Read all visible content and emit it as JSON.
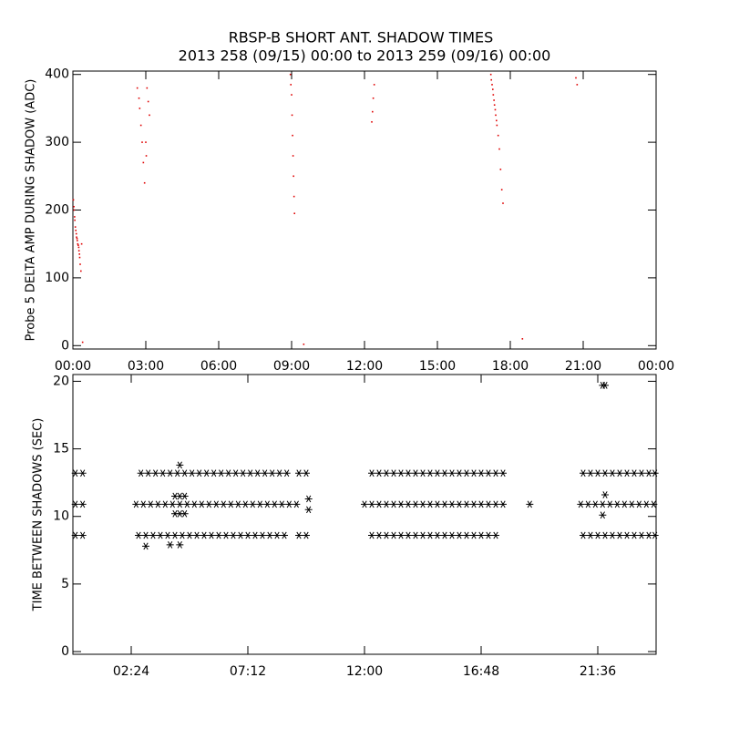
{
  "chart_data": [
    {
      "type": "scatter",
      "title": "RBSP-B SHORT ANT. SHADOW TIMES",
      "subtitle": "2013 258 (09/15) 00:00 to 2013 259 (09/16) 00:00",
      "y_label": "Probe 5 DELTA AMP DURING SHADOW (ADC)",
      "xlim": [
        0,
        24
      ],
      "ylim": [
        -5,
        405
      ],
      "xticks": [
        {
          "value": 0,
          "label": "00:00"
        },
        {
          "value": 3,
          "label": "03:00"
        },
        {
          "value": 6,
          "label": "06:00"
        },
        {
          "value": 9,
          "label": "09:00"
        },
        {
          "value": 12,
          "label": "12:00"
        },
        {
          "value": 15,
          "label": "15:00"
        },
        {
          "value": 18,
          "label": "18:00"
        },
        {
          "value": 21,
          "label": "21:00"
        },
        {
          "value": 24,
          "label": "00:00"
        }
      ],
      "yticks": [
        0,
        100,
        200,
        300,
        400
      ],
      "series": [
        {
          "color": "#e00000",
          "marker": "dot",
          "x": [
            0.02,
            0.04,
            0.05,
            0.07,
            0.08,
            0.1,
            0.12,
            0.14,
            0.15,
            0.17,
            0.18,
            0.2,
            0.22,
            0.24,
            0.25,
            0.27,
            0.28,
            0.3,
            0.33,
            0.36,
            0.4,
            2.65,
            2.72,
            2.75,
            2.8,
            2.85,
            2.9,
            2.95,
            3.0,
            3.02,
            3.05,
            3.1,
            3.15,
            8.95,
            8.97,
            9.0,
            9.02,
            9.04,
            9.06,
            9.08,
            9.1,
            9.12,
            9.5,
            12.3,
            12.33,
            12.36,
            12.4,
            17.2,
            17.22,
            17.25,
            17.28,
            17.3,
            17.33,
            17.35,
            17.38,
            17.4,
            17.43,
            17.45,
            17.5,
            17.55,
            17.6,
            17.65,
            17.7,
            18.5,
            20.7,
            20.75
          ],
          "values": [
            215,
            205,
            200,
            190,
            185,
            175,
            170,
            165,
            160,
            158,
            155,
            150,
            148,
            145,
            140,
            135,
            130,
            120,
            110,
            150,
            5,
            380,
            365,
            350,
            325,
            300,
            270,
            240,
            300,
            280,
            380,
            360,
            340,
            400,
            385,
            370,
            340,
            310,
            280,
            250,
            220,
            195,
            2,
            330,
            345,
            365,
            385,
            400,
            392,
            385,
            378,
            370,
            362,
            355,
            348,
            340,
            332,
            325,
            310,
            290,
            260,
            230,
            210,
            10,
            395,
            385
          ]
        }
      ]
    },
    {
      "type": "scatter",
      "y_label": "TIME BETWEEN SHADOWS (SEC)",
      "xlim": [
        0,
        24
      ],
      "ylim": [
        -0.2,
        20.5
      ],
      "xticks": [
        {
          "value": 2.4,
          "label": "02:24"
        },
        {
          "value": 7.2,
          "label": "07:12"
        },
        {
          "value": 12,
          "label": "12:00"
        },
        {
          "value": 16.8,
          "label": "16:48"
        },
        {
          "value": 21.6,
          "label": "21:36"
        }
      ],
      "yticks": [
        0,
        5,
        10,
        15,
        20
      ],
      "series": [
        {
          "color": "#000000",
          "marker": "asterisk",
          "x": [
            0.1,
            0.4,
            2.8,
            3.1,
            3.4,
            3.7,
            4.0,
            4.3,
            4.6,
            4.9,
            5.2,
            5.5,
            5.8,
            6.1,
            6.4,
            6.7,
            7.0,
            7.3,
            7.6,
            7.9,
            8.2,
            8.5,
            8.8,
            9.3,
            9.6,
            12.3,
            12.6,
            12.9,
            13.2,
            13.5,
            13.8,
            14.1,
            14.4,
            14.7,
            15.0,
            15.3,
            15.6,
            15.9,
            16.2,
            16.5,
            16.8,
            17.1,
            17.4,
            17.7,
            21.0,
            21.3,
            21.6,
            21.9,
            22.2,
            22.5,
            22.8,
            23.1,
            23.4,
            23.7,
            23.95
          ],
          "values": [
            13.2,
            13.2,
            13.2,
            13.2,
            13.2,
            13.2,
            13.2,
            13.2,
            13.2,
            13.2,
            13.2,
            13.2,
            13.2,
            13.2,
            13.2,
            13.2,
            13.2,
            13.2,
            13.2,
            13.2,
            13.2,
            13.2,
            13.2,
            13.2,
            13.2,
            13.2,
            13.2,
            13.2,
            13.2,
            13.2,
            13.2,
            13.2,
            13.2,
            13.2,
            13.2,
            13.2,
            13.2,
            13.2,
            13.2,
            13.2,
            13.2,
            13.2,
            13.2,
            13.2,
            13.2,
            13.2,
            13.2,
            13.2,
            13.2,
            13.2,
            13.2,
            13.2,
            13.2,
            13.2,
            13.2
          ]
        },
        {
          "color": "#000000",
          "marker": "asterisk",
          "x": [
            0.1,
            0.4,
            2.6,
            2.9,
            3.2,
            3.5,
            3.8,
            4.1,
            4.4,
            4.7,
            5.0,
            5.3,
            5.6,
            5.9,
            6.2,
            6.5,
            6.8,
            7.1,
            7.4,
            7.7,
            8.0,
            8.3,
            8.6,
            8.9,
            9.2,
            12.0,
            12.3,
            12.6,
            12.9,
            13.2,
            13.5,
            13.8,
            14.1,
            14.4,
            14.7,
            15.0,
            15.3,
            15.6,
            15.9,
            16.2,
            16.5,
            16.8,
            17.1,
            17.4,
            17.7,
            18.8,
            20.9,
            21.2,
            21.5,
            21.8,
            22.1,
            22.4,
            22.7,
            23.0,
            23.3,
            23.6,
            23.9
          ],
          "values": [
            10.9,
            10.9,
            10.9,
            10.9,
            10.9,
            10.9,
            10.9,
            10.9,
            10.9,
            10.9,
            10.9,
            10.9,
            10.9,
            10.9,
            10.9,
            10.9,
            10.9,
            10.9,
            10.9,
            10.9,
            10.9,
            10.9,
            10.9,
            10.9,
            10.9,
            10.9,
            10.9,
            10.9,
            10.9,
            10.9,
            10.9,
            10.9,
            10.9,
            10.9,
            10.9,
            10.9,
            10.9,
            10.9,
            10.9,
            10.9,
            10.9,
            10.9,
            10.9,
            10.9,
            10.9,
            10.9,
            10.9,
            10.9,
            10.9,
            10.9,
            10.9,
            10.9,
            10.9,
            10.9,
            10.9,
            10.9,
            10.9
          ]
        },
        {
          "color": "#000000",
          "marker": "asterisk",
          "x": [
            0.1,
            0.4,
            2.7,
            3.0,
            3.3,
            3.6,
            3.9,
            4.2,
            4.5,
            4.8,
            5.1,
            5.4,
            5.7,
            6.0,
            6.3,
            6.6,
            6.9,
            7.2,
            7.5,
            7.8,
            8.1,
            8.4,
            8.7,
            9.3,
            9.6,
            12.3,
            12.6,
            12.9,
            13.2,
            13.5,
            13.8,
            14.1,
            14.4,
            14.7,
            15.0,
            15.3,
            15.6,
            15.9,
            16.2,
            16.5,
            16.8,
            17.1,
            17.4,
            21.0,
            21.3,
            21.6,
            21.9,
            22.2,
            22.5,
            22.8,
            23.1,
            23.4,
            23.7,
            23.95
          ],
          "values": [
            8.6,
            8.6,
            8.6,
            8.6,
            8.6,
            8.6,
            8.6,
            8.6,
            8.6,
            8.6,
            8.6,
            8.6,
            8.6,
            8.6,
            8.6,
            8.6,
            8.6,
            8.6,
            8.6,
            8.6,
            8.6,
            8.6,
            8.6,
            8.6,
            8.6,
            8.6,
            8.6,
            8.6,
            8.6,
            8.6,
            8.6,
            8.6,
            8.6,
            8.6,
            8.6,
            8.6,
            8.6,
            8.6,
            8.6,
            8.6,
            8.6,
            8.6,
            8.6,
            8.6,
            8.6,
            8.6,
            8.6,
            8.6,
            8.6,
            8.6,
            8.6,
            8.6,
            8.6,
            8.6
          ]
        },
        {
          "color": "#000000",
          "marker": "asterisk",
          "x": [
            9.7,
            9.7,
            3.0,
            4.0,
            4.4,
            4.2,
            4.4,
            4.6,
            4.2,
            4.4,
            4.6,
            4.4,
            21.8,
            21.9,
            21.9,
            21.8
          ],
          "values": [
            11.3,
            10.5,
            7.8,
            7.9,
            7.9,
            11.5,
            11.5,
            11.5,
            10.2,
            10.2,
            10.2,
            13.8,
            19.7,
            19.7,
            11.6,
            10.1
          ]
        }
      ]
    }
  ]
}
